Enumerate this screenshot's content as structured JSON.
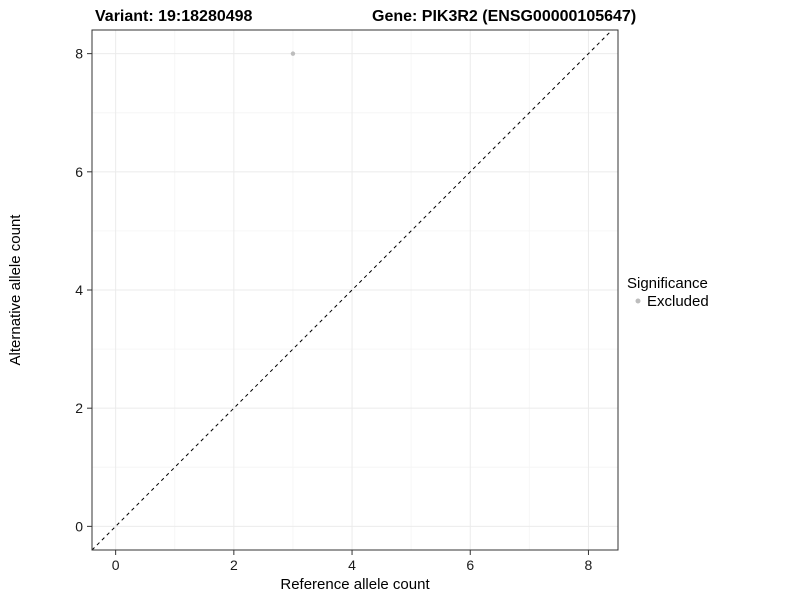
{
  "chart_data": {
    "type": "scatter",
    "title_left": "Variant: 19:18280498",
    "title_right": "Gene: PIK3R2 (ENSG00000105647)",
    "xlabel": "Reference allele count",
    "ylabel": "Alternative allele count",
    "xlim": [
      -0.4,
      8.5
    ],
    "ylim": [
      -0.4,
      8.4
    ],
    "xticks": [
      0,
      2,
      4,
      6,
      8
    ],
    "yticks": [
      0,
      2,
      4,
      6,
      8
    ],
    "minor_xticks": [
      1,
      3,
      5,
      7
    ],
    "minor_yticks": [
      1,
      3,
      5,
      7
    ],
    "grid": true,
    "identity_line": {
      "equation": "y = x",
      "style": "dashed",
      "color": "#000000"
    },
    "series": [
      {
        "name": "Excluded",
        "color": "#bdbdbd",
        "points": [
          {
            "x": 3,
            "y": 8
          }
        ]
      }
    ],
    "legend": {
      "title": "Significance",
      "position": "right",
      "items": [
        {
          "label": "Excluded",
          "color": "#bdbdbd"
        }
      ]
    }
  },
  "colors": {
    "panel_background": "#ffffff",
    "panel_border": "#333333",
    "grid_major": "#ebebeb",
    "grid_minor": "#f6f6f6",
    "tick": "#333333",
    "point": "#bdbdbd"
  }
}
